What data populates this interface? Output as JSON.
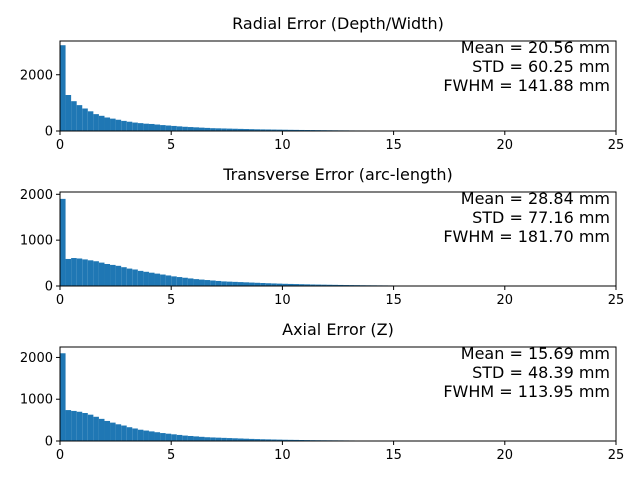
{
  "chart_data": [
    {
      "type": "bar",
      "title": "Radial Error (Depth/Width)",
      "xlabel": "",
      "ylabel": "",
      "xlim": [
        0,
        25
      ],
      "ylim": [
        0,
        3200
      ],
      "xticks": [
        0,
        5,
        10,
        15,
        20,
        25
      ],
      "yticks": [
        0,
        2000
      ],
      "bin_width": 0.25,
      "color": "#1f77b4",
      "grid": false,
      "annotations": [
        "Mean = 20.56 mm",
        "STD = 60.25 mm",
        "FWHM = 141.88 mm"
      ],
      "values": [
        3050,
        1280,
        1060,
        920,
        800,
        700,
        600,
        540,
        480,
        440,
        400,
        360,
        330,
        300,
        280,
        260,
        250,
        230,
        210,
        195,
        180,
        165,
        150,
        140,
        130,
        120,
        110,
        100,
        95,
        90,
        85,
        80,
        75,
        70,
        65,
        60,
        57,
        54,
        51,
        48,
        45,
        42,
        40,
        37,
        35,
        33,
        31,
        29,
        27,
        25,
        23,
        22,
        20,
        19,
        18,
        17,
        16,
        15,
        14,
        13,
        12,
        11,
        10,
        9,
        8,
        8,
        7,
        6,
        6,
        5,
        5,
        4,
        4,
        3,
        3,
        3,
        2,
        2,
        2,
        2
      ]
    },
    {
      "type": "bar",
      "title": "Transverse Error (arc-length)",
      "xlabel": "",
      "ylabel": "",
      "xlim": [
        0,
        25
      ],
      "ylim": [
        0,
        2050
      ],
      "xticks": [
        0,
        5,
        10,
        15,
        20,
        25
      ],
      "yticks": [
        0,
        1000,
        2000
      ],
      "bin_width": 0.25,
      "color": "#1f77b4",
      "grid": false,
      "annotations": [
        "Mean = 28.84 mm",
        "STD = 77.16 mm",
        "FWHM = 181.70 mm"
      ],
      "values": [
        1900,
        590,
        610,
        600,
        580,
        560,
        540,
        510,
        480,
        460,
        440,
        410,
        380,
        360,
        330,
        310,
        290,
        270,
        250,
        230,
        210,
        195,
        180,
        165,
        150,
        140,
        130,
        120,
        110,
        100,
        95,
        90,
        85,
        80,
        75,
        70,
        65,
        60,
        56,
        52,
        48,
        45,
        42,
        39,
        36,
        33,
        31,
        29,
        27,
        25,
        23,
        21,
        20,
        19,
        17,
        16,
        15,
        14,
        13,
        12,
        11,
        10,
        10,
        9,
        9,
        8,
        8,
        7,
        7,
        6,
        6,
        6,
        5,
        5,
        5,
        4,
        4,
        4,
        3,
        3,
        3,
        3,
        2,
        2,
        2,
        2,
        2,
        2,
        2,
        2
      ]
    },
    {
      "type": "bar",
      "title": "Axial Error (Z)",
      "xlabel": "",
      "ylabel": "",
      "xlim": [
        0,
        25
      ],
      "ylim": [
        0,
        2250
      ],
      "xticks": [
        0,
        5,
        10,
        15,
        20,
        25
      ],
      "yticks": [
        0,
        1000,
        2000
      ],
      "bin_width": 0.25,
      "color": "#1f77b4",
      "grid": false,
      "annotations": [
        "Mean = 15.69 mm",
        "STD = 48.39 mm",
        "FWHM = 113.95 mm"
      ],
      "values": [
        2100,
        740,
        720,
        700,
        670,
        630,
        580,
        530,
        480,
        440,
        400,
        370,
        330,
        300,
        270,
        250,
        230,
        210,
        190,
        175,
        160,
        145,
        130,
        120,
        110,
        100,
        90,
        85,
        80,
        75,
        70,
        65,
        60,
        55,
        50,
        46,
        42,
        39,
        36,
        33,
        30,
        28,
        26,
        24,
        22,
        20,
        19,
        18,
        17,
        16,
        15,
        14,
        13,
        12,
        11,
        10,
        9,
        9,
        8,
        8,
        7,
        7,
        6,
        6,
        5,
        5,
        5,
        4,
        4,
        4,
        3,
        3,
        3,
        2,
        2,
        2
      ]
    }
  ]
}
